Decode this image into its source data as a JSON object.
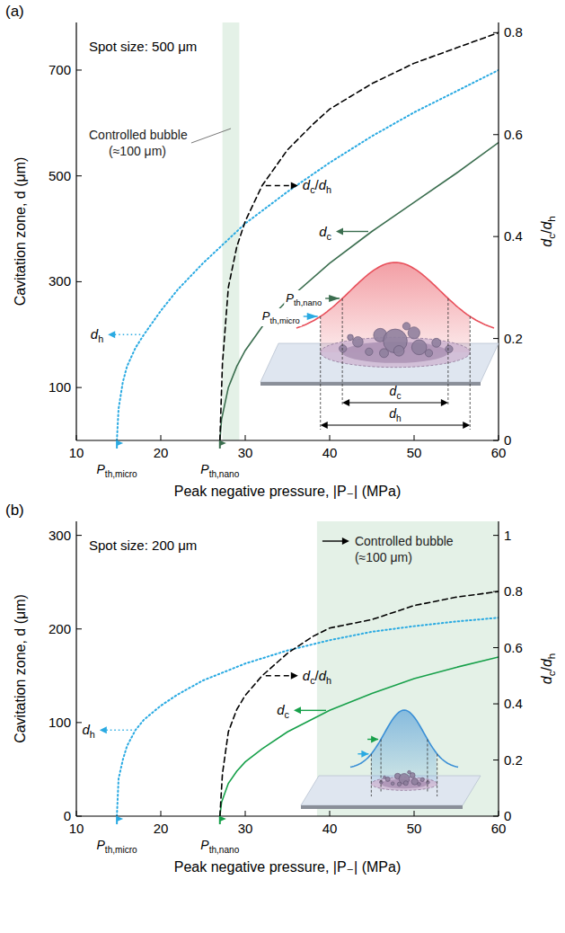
{
  "chart_data": [
    {
      "type": "line",
      "panel_label": "(a)",
      "subtitle": "Spot size: 500 μm",
      "x_label": "Peak negative pressure, |P₋|  (MPa)",
      "y_label": "Cavitation zone, d (μm)",
      "y2_label": "dc/dh",
      "xlim": [
        10,
        60
      ],
      "xticks": [
        10,
        20,
        30,
        40,
        50,
        60
      ],
      "ylim": [
        0,
        790
      ],
      "yticks": [
        100,
        300,
        500,
        700
      ],
      "y2lim": [
        0,
        0.82
      ],
      "y2ticks": [
        0,
        0.2,
        0.4,
        0.6,
        0.8
      ],
      "series": [
        {
          "name": "dh",
          "color": "#2aaae2",
          "line_style": "dotted",
          "x": [
            14.8,
            15,
            15.5,
            16,
            17,
            18,
            20,
            22,
            25,
            30,
            35,
            40,
            45,
            50,
            55,
            60
          ],
          "values": [
            0,
            60,
            110,
            140,
            175,
            200,
            245,
            285,
            335,
            410,
            470,
            525,
            575,
            620,
            660,
            700
          ]
        },
        {
          "name": "dc",
          "color": "#3b6e4f",
          "line_style": "solid",
          "x": [
            27,
            27.2,
            28,
            29,
            30,
            32,
            35,
            40,
            45,
            50,
            55,
            60
          ],
          "values": [
            0,
            40,
            100,
            140,
            170,
            215,
            265,
            335,
            395,
            450,
            505,
            563
          ]
        },
        {
          "name": "dc/dh",
          "color": "#000000",
          "line_style": "dashed",
          "axis": "y2",
          "x": [
            27,
            27.3,
            28,
            29,
            30,
            32,
            35,
            38,
            40,
            45,
            50,
            55,
            60
          ],
          "values": [
            0,
            0.15,
            0.3,
            0.38,
            0.43,
            0.5,
            0.57,
            0.62,
            0.65,
            0.7,
            0.74,
            0.77,
            0.8
          ]
        }
      ],
      "thresholds": [
        {
          "label": "Pth,micro",
          "value": 14.8,
          "color": "#2aaae2"
        },
        {
          "label": "Pth,nano",
          "value": 27,
          "color": "#3b6e4f"
        }
      ],
      "controlled_bubble": {
        "label": "Controlled bubble (≈100 μm)",
        "range": [
          27.3,
          29.3
        ]
      },
      "inset_labels": [
        "Pth,nano",
        "Pth,micro",
        "dc",
        "dh"
      ]
    },
    {
      "type": "line",
      "panel_label": "(b)",
      "subtitle": "Spot size: 200 μm",
      "x_label": "Peak negative pressure, |P₋|  (MPa)",
      "y_label": "Cavitation zone, d (μm)",
      "y2_label": "dc/dh",
      "xlim": [
        10,
        60
      ],
      "xticks": [
        10,
        20,
        30,
        40,
        50,
        60
      ],
      "ylim": [
        0,
        315
      ],
      "yticks": [
        0,
        100,
        200,
        300
      ],
      "y2lim": [
        0,
        1.05
      ],
      "y2ticks": [
        0,
        0.2,
        0.4,
        0.6,
        0.8,
        1
      ],
      "series": [
        {
          "name": "dh",
          "color": "#2aaae2",
          "line_style": "dotted",
          "x": [
            14.8,
            15,
            15.5,
            16,
            17,
            18,
            20,
            22,
            25,
            30,
            35,
            40,
            45,
            50,
            55,
            60
          ],
          "values": [
            0,
            40,
            60,
            75,
            92,
            103,
            118,
            130,
            145,
            163,
            177,
            188,
            197,
            203,
            208,
            212
          ]
        },
        {
          "name": "dc",
          "color": "#17a04a",
          "line_style": "solid",
          "x": [
            27,
            27.2,
            28,
            29,
            30,
            32,
            35,
            40,
            45,
            50,
            55,
            60
          ],
          "values": [
            0,
            15,
            35,
            48,
            58,
            72,
            90,
            113,
            131,
            147,
            159,
            170
          ]
        },
        {
          "name": "dc/dh",
          "color": "#000000",
          "line_style": "dashed",
          "axis": "y2",
          "x": [
            27,
            27.3,
            28,
            29,
            30,
            32,
            35,
            38,
            40,
            45,
            50,
            55,
            60
          ],
          "values": [
            0,
            0.15,
            0.3,
            0.38,
            0.43,
            0.5,
            0.58,
            0.64,
            0.67,
            0.7,
            0.75,
            0.78,
            0.8
          ]
        }
      ],
      "thresholds": [
        {
          "label": "Pth,micro",
          "value": 14.8,
          "color": "#2aaae2"
        },
        {
          "label": "Pth,nano",
          "value": 27,
          "color": "#17a04a"
        }
      ],
      "controlled_bubble": {
        "label": "Controlled bubble (≈100 μm)",
        "range": [
          38.5,
          60
        ]
      }
    }
  ]
}
